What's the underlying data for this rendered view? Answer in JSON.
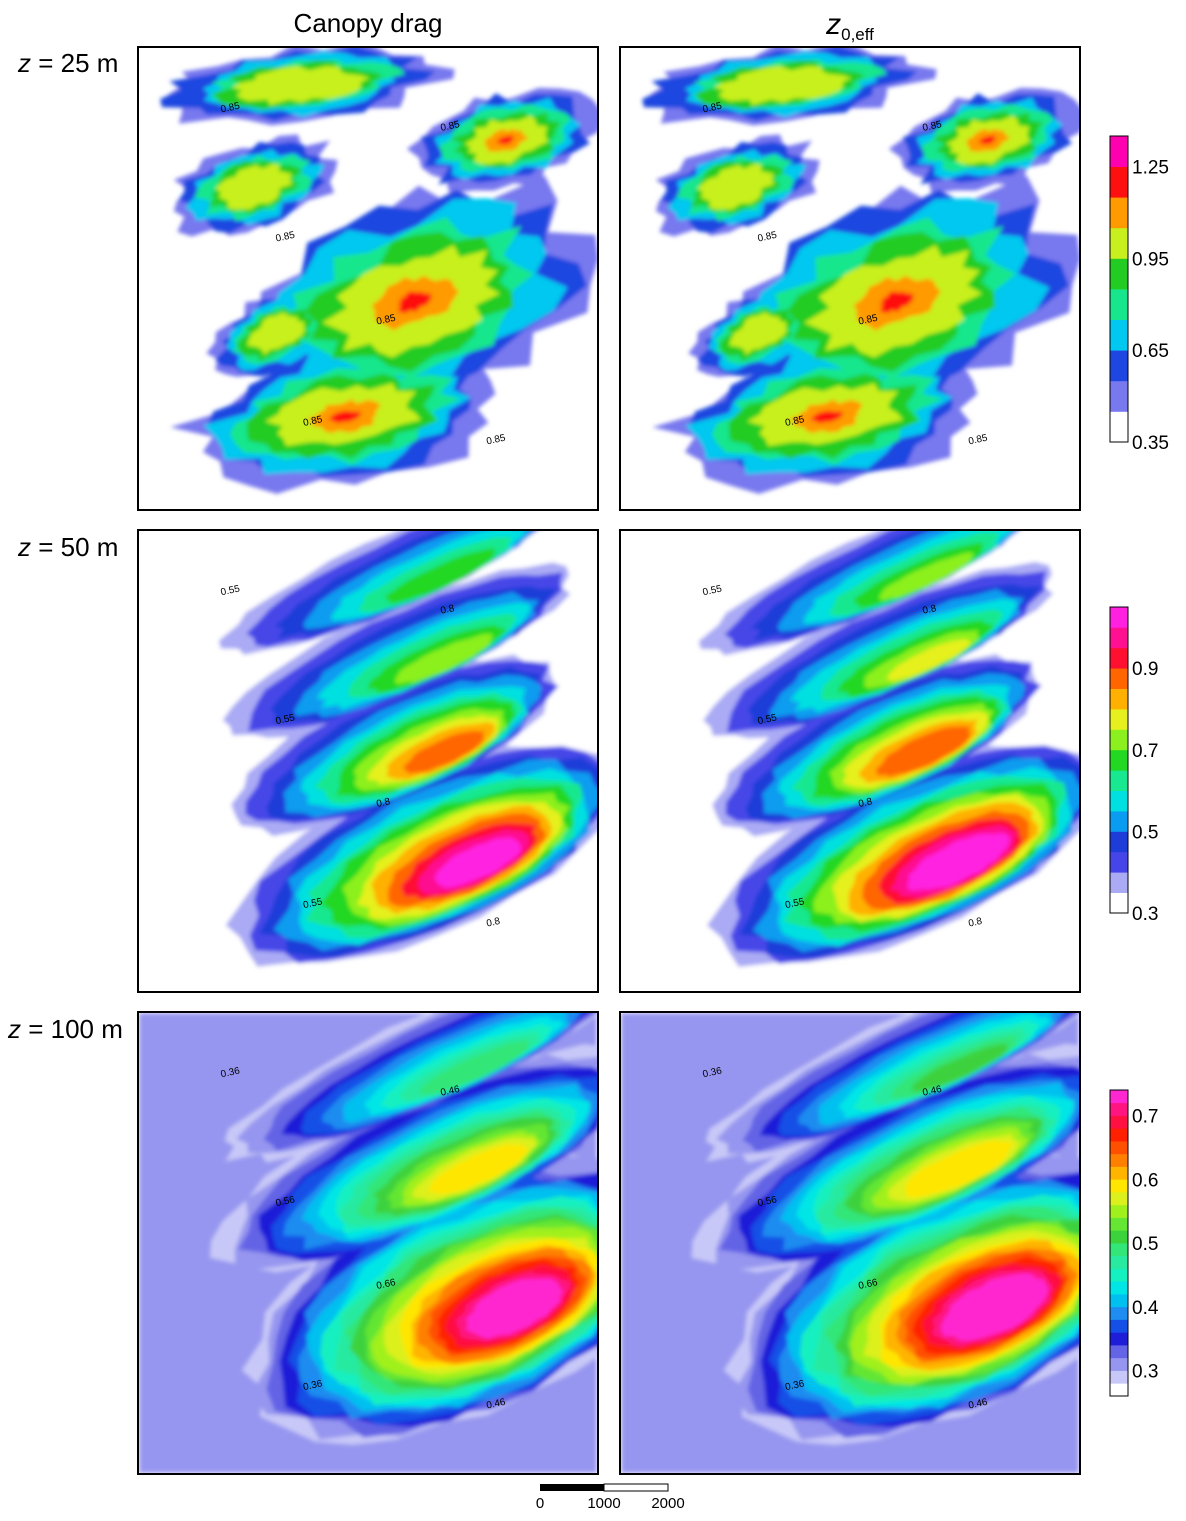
{
  "columns": [
    "Canopy drag",
    "z",
    "0,eff"
  ],
  "rows": [
    {
      "italic": "z",
      "rest": " = 25 m"
    },
    {
      "italic": "z",
      "rest": " = 50 m"
    },
    {
      "italic": "z",
      "rest": " = 100 m"
    }
  ],
  "chart_data": [
    {
      "type": "heatmap",
      "row": "z = 25 m",
      "colorbar": {
        "ticks": [
          "1.25",
          "0.95",
          "0.65",
          "0.35"
        ],
        "levels": [
          0.35,
          0.45,
          0.55,
          0.65,
          0.75,
          0.85,
          0.95,
          1.05,
          1.15,
          1.25,
          1.35
        ],
        "colors": [
          "#ffffff",
          "#7878ef",
          "#1e46e0",
          "#00c8f0",
          "#18e68c",
          "#22cc22",
          "#c8f01e",
          "#ff9a00",
          "#ff1010",
          "#ff00b0"
        ]
      },
      "contour_labels": [
        "0.85"
      ]
    },
    {
      "type": "heatmap",
      "row": "z = 50 m",
      "colorbar": {
        "ticks": [
          "0.9",
          "0.7",
          "0.5",
          "0.3"
        ],
        "levels": [
          0.3,
          0.35,
          0.4,
          0.45,
          0.5,
          0.55,
          0.6,
          0.65,
          0.7,
          0.75,
          0.8,
          0.85,
          0.9,
          0.95,
          1.0,
          1.05
        ],
        "colors": [
          "#ffffff",
          "#aaaaf5",
          "#4646e8",
          "#1e3cd8",
          "#0a9cf0",
          "#00e0e0",
          "#18e890",
          "#22d822",
          "#8cf01e",
          "#e6f01e",
          "#ffb000",
          "#ff6600",
          "#ff1030",
          "#ff1090",
          "#ff20e0"
        ]
      },
      "contour_labels": [
        "0.55",
        "0.8"
      ]
    },
    {
      "type": "heatmap",
      "row": "z = 100 m",
      "colorbar": {
        "ticks": [
          "0.7",
          "0.6",
          "0.5",
          "0.4",
          "0.3"
        ],
        "levels": [
          0.26,
          0.28,
          0.3,
          0.32,
          0.34,
          0.36,
          0.38,
          0.4,
          0.42,
          0.44,
          0.46,
          0.48,
          0.5,
          0.52,
          0.54,
          0.56,
          0.58,
          0.6,
          0.62,
          0.64,
          0.66,
          0.68,
          0.7,
          0.72,
          0.74
        ],
        "colors": [
          "#ffffff",
          "#c8c8f8",
          "#9696f0",
          "#6464e6",
          "#1e1ed8",
          "#1450e6",
          "#1e8cf0",
          "#00c0f0",
          "#00e6e6",
          "#14f0c0",
          "#28eaa0",
          "#32e678",
          "#3cd23c",
          "#64e632",
          "#a0f01e",
          "#dcf01e",
          "#ffe600",
          "#ffb400",
          "#ff8000",
          "#ff5000",
          "#ff2000",
          "#ff1040",
          "#ff1480",
          "#ff28d0"
        ]
      },
      "contour_labels": [
        "0.36",
        "0.46",
        "0.56",
        "0.66"
      ]
    }
  ],
  "scalebar": {
    "labels": [
      "0",
      "1000",
      "2000"
    ]
  }
}
